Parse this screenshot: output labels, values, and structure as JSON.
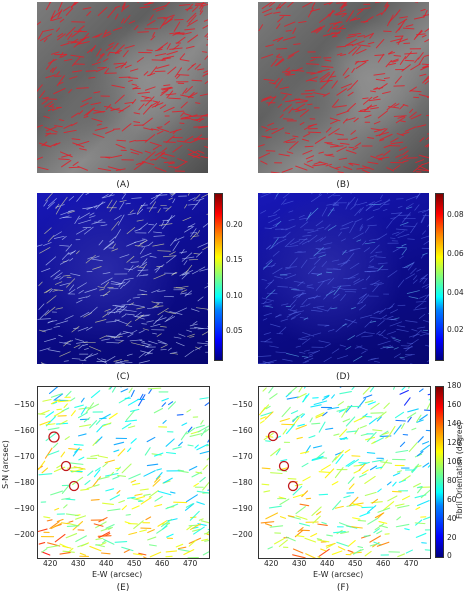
{
  "panels": {
    "A": "(A)",
    "B": "(B)",
    "C": "(C)",
    "D": "(D)",
    "E": "(E)",
    "F": "(F)"
  },
  "colorbar_c": {
    "ticks": [
      "0.20",
      "0.15",
      "0.10",
      "0.05"
    ]
  },
  "colorbar_d": {
    "ticks": [
      "0.08",
      "0.06",
      "0.04",
      "0.02"
    ]
  },
  "colorbar_f": {
    "ticks": [
      "180",
      "160",
      "140",
      "120",
      "100",
      "80",
      "60",
      "40",
      "20",
      "0"
    ],
    "label": "Fibril Orientation (degree)"
  },
  "axes_e": {
    "ylabel": "S-N (arcsec)",
    "xlabel": "E-W (arcsec)",
    "yticks": [
      "−150",
      "−160",
      "−170",
      "−180",
      "−190",
      "−200"
    ],
    "xticks": [
      "420",
      "430",
      "440",
      "450",
      "460",
      "470"
    ]
  },
  "axes_f": {
    "xlabel": "E-W (arcsec)",
    "yticks": [
      "−150",
      "−160",
      "−170",
      "−180",
      "−190",
      "−200"
    ],
    "xticks": [
      "420",
      "430",
      "440",
      "450",
      "460",
      "470"
    ]
  },
  "colors": {
    "fibril_red": "#e0202a",
    "circle_red": "#c0181c"
  }
}
